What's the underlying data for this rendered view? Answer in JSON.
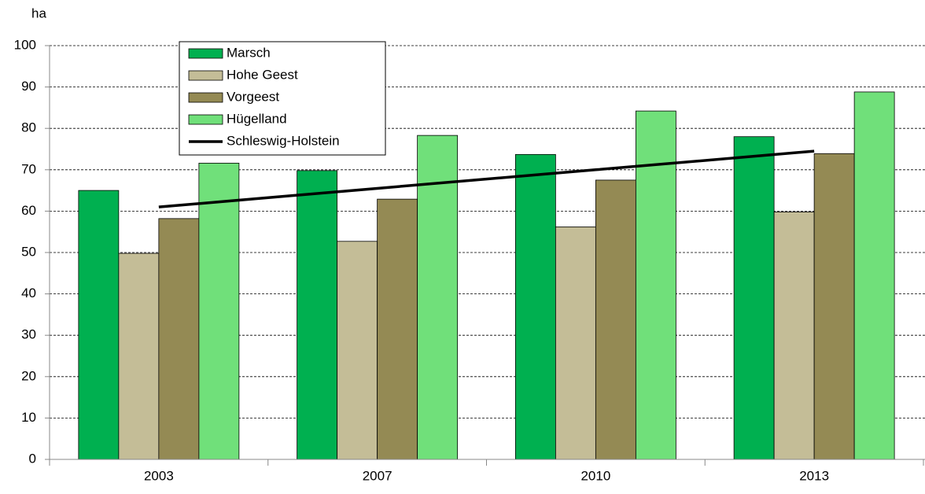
{
  "chart_data": {
    "type": "bar",
    "y_label": "ha",
    "categories": [
      "2003",
      "2007",
      "2010",
      "2013"
    ],
    "series": [
      {
        "name": "Marsch",
        "color": "#00b050",
        "values": [
          65,
          69.8,
          73.7,
          78
        ]
      },
      {
        "name": "Hohe Geest",
        "color": "#c4bd97",
        "values": [
          49.8,
          52.7,
          56.2,
          59.8
        ]
      },
      {
        "name": "Vorgeest",
        "color": "#948a54",
        "values": [
          58.2,
          62.9,
          67.5,
          73.9
        ]
      },
      {
        "name": "Hügelland",
        "color": "#70e07a",
        "values": [
          71.6,
          78.3,
          84.2,
          88.8
        ]
      },
      {
        "name": "Schleswig-Holstein",
        "type": "line",
        "color": "#000000",
        "values": [
          61,
          65.5,
          70,
          74.5
        ]
      }
    ],
    "ylim": [
      0,
      100
    ],
    "yticks": [
      0,
      10,
      20,
      30,
      40,
      50,
      60,
      70,
      80,
      90,
      100
    ],
    "grid": true
  }
}
